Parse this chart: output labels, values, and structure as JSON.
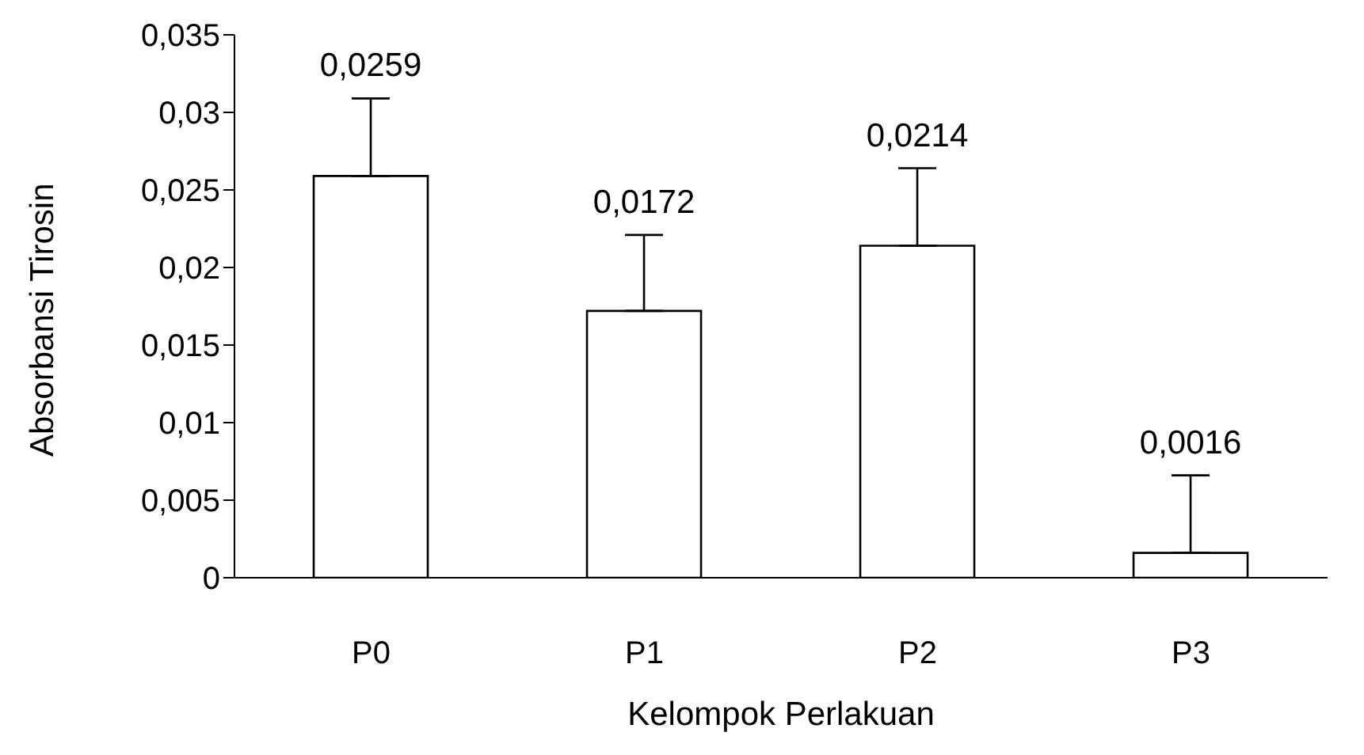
{
  "chart_data": {
    "type": "bar",
    "xlabel": "Kelompok Perlakuan",
    "ylabel": "Absorbansi Tirosin",
    "categories": [
      "P0",
      "P1",
      "P2",
      "P3"
    ],
    "values": [
      0.0259,
      0.0172,
      0.0214,
      0.0016
    ],
    "errors": [
      [
        0.0259,
        0.0309
      ],
      [
        0.0172,
        0.0221
      ],
      [
        0.0214,
        0.0264
      ],
      [
        0.0016,
        0.0066
      ]
    ],
    "color": "#ffffff",
    "ylim": [
      0,
      0.035
    ],
    "yticks": [
      0,
      {
        "value": 0.005,
        "label": "0,005"
      },
      {
        "value": 0.01,
        "label": "0,01"
      },
      {
        "value": 0.015,
        "label": "0,015"
      },
      {
        "value": 0.02,
        "label": "0,02"
      },
      {
        "value": 0.025,
        "label": "0,025"
      },
      {
        "value": 0.03,
        "label": "0,03"
      },
      {
        "value": 0.035,
        "label": "0,035"
      }
    ],
    "value_labels": [
      "0,0259",
      "0,0172",
      "0,0214",
      "0,0016"
    ],
    "grid": false,
    "legend": false
  }
}
